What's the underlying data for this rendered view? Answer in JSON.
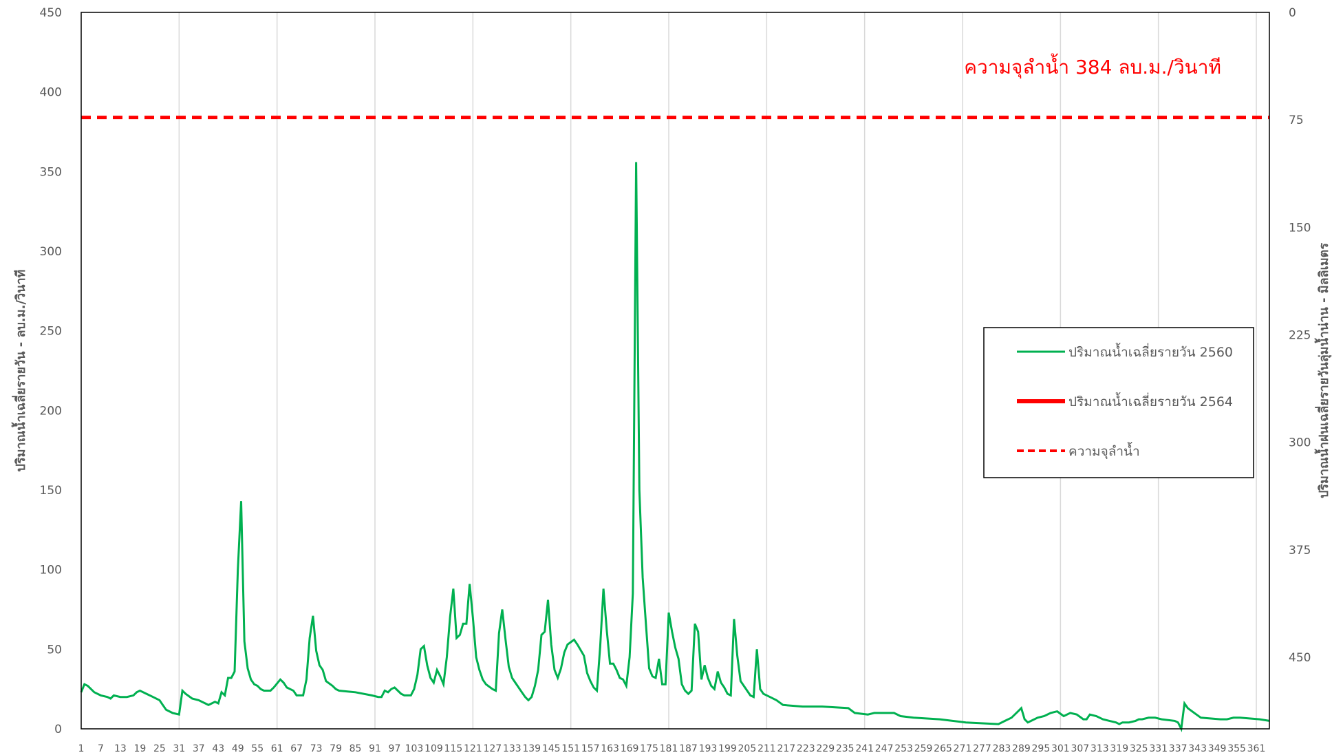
{
  "chart_data": {
    "type": "line",
    "title": "",
    "ylabel_left": "ปริมาณน้ำเฉลี่ยรายวัน - ลบ.ม./วินาที",
    "ylabel_right": "ปริมาณน้ำฝนเฉลี่ยรายวันลุ่มน้ำน่าน - มิลลิเมตร",
    "ylim_left": [
      0,
      450
    ],
    "yticks_left": [
      "0",
      "50",
      "100",
      "150",
      "200",
      "250",
      "300",
      "350",
      "400",
      "450"
    ],
    "ylim_right": [
      0,
      500
    ],
    "right_axis_inverted": true,
    "yticks_right": [
      "0",
      "75",
      "150",
      "225",
      "300",
      "375",
      "450"
    ],
    "xlim": [
      1,
      365
    ],
    "xticks": [
      "1",
      "7",
      "13",
      "19",
      "25",
      "31",
      "37",
      "43",
      "49",
      "55",
      "61",
      "67",
      "73",
      "79",
      "85",
      "91",
      "97",
      "103",
      "109",
      "115",
      "121",
      "127",
      "133",
      "139",
      "145",
      "151",
      "157",
      "163",
      "169",
      "175",
      "181",
      "187",
      "193",
      "199",
      "205",
      "211",
      "217",
      "223",
      "229",
      "235",
      "241",
      "247",
      "253",
      "259",
      "265",
      "271",
      "277",
      "283",
      "289",
      "295",
      "301",
      "307",
      "313",
      "319",
      "325",
      "331",
      "337",
      "343",
      "349",
      "355",
      "361"
    ],
    "grid": "vertical",
    "legend_position": "right",
    "legend": [
      {
        "label": "ปริมาณน้ำเฉลี่ยรายวัน 2560",
        "color": "#00B050",
        "style": "solid-thin"
      },
      {
        "label": "ปริมาณน้ำเฉลี่ยรายวัน 2564",
        "color": "#FF0000",
        "style": "solid-thick"
      },
      {
        "label": "ความจุลำน้ำ",
        "color": "#FF0000",
        "style": "dashed"
      }
    ],
    "capacity": {
      "value": 384,
      "label": "ความจุลำน้ำ 384 ลบ.ม./วินาที",
      "color": "#FF0000"
    },
    "series": [
      {
        "name": "ปริมาณน้ำเฉลี่ยรายวัน 2560",
        "color": "#00B050",
        "points": [
          [
            1,
            23
          ],
          [
            2,
            28
          ],
          [
            3,
            27
          ],
          [
            5,
            23
          ],
          [
            7,
            21
          ],
          [
            9,
            20
          ],
          [
            10,
            19
          ],
          [
            11,
            21
          ],
          [
            13,
            20
          ],
          [
            15,
            20
          ],
          [
            17,
            21
          ],
          [
            18,
            23
          ],
          [
            19,
            24
          ],
          [
            21,
            22
          ],
          [
            23,
            20
          ],
          [
            25,
            18
          ],
          [
            26,
            15
          ],
          [
            27,
            12
          ],
          [
            29,
            10
          ],
          [
            31,
            9
          ],
          [
            32,
            24
          ],
          [
            33,
            22
          ],
          [
            35,
            19
          ],
          [
            37,
            18
          ],
          [
            39,
            16
          ],
          [
            40,
            15
          ],
          [
            41,
            16
          ],
          [
            42,
            17
          ],
          [
            43,
            16
          ],
          [
            44,
            23
          ],
          [
            45,
            21
          ],
          [
            46,
            32
          ],
          [
            47,
            32
          ],
          [
            48,
            36
          ],
          [
            49,
            100
          ],
          [
            50,
            143
          ],
          [
            51,
            55
          ],
          [
            52,
            38
          ],
          [
            53,
            31
          ],
          [
            54,
            28
          ],
          [
            55,
            27
          ],
          [
            56,
            25
          ],
          [
            57,
            24
          ],
          [
            59,
            24
          ],
          [
            60,
            26
          ],
          [
            62,
            31
          ],
          [
            63,
            29
          ],
          [
            64,
            26
          ],
          [
            65,
            25
          ],
          [
            66,
            24
          ],
          [
            67,
            21
          ],
          [
            69,
            21
          ],
          [
            70,
            31
          ],
          [
            71,
            57
          ],
          [
            72,
            71
          ],
          [
            73,
            49
          ],
          [
            74,
            40
          ],
          [
            75,
            37
          ],
          [
            76,
            30
          ],
          [
            78,
            27
          ],
          [
            79,
            25
          ],
          [
            80,
            24
          ],
          [
            85,
            23
          ],
          [
            90,
            21
          ],
          [
            92,
            20
          ],
          [
            93,
            20
          ],
          [
            94,
            24
          ],
          [
            95,
            23
          ],
          [
            96,
            25
          ],
          [
            97,
            26
          ],
          [
            98,
            24
          ],
          [
            99,
            22
          ],
          [
            100,
            21
          ],
          [
            102,
            21
          ],
          [
            103,
            25
          ],
          [
            104,
            34
          ],
          [
            105,
            50
          ],
          [
            106,
            52
          ],
          [
            107,
            40
          ],
          [
            108,
            32
          ],
          [
            109,
            29
          ],
          [
            110,
            37
          ],
          [
            111,
            33
          ],
          [
            112,
            28
          ],
          [
            113,
            45
          ],
          [
            114,
            70
          ],
          [
            115,
            88
          ],
          [
            116,
            57
          ],
          [
            117,
            59
          ],
          [
            118,
            66
          ],
          [
            119,
            66
          ],
          [
            120,
            91
          ],
          [
            121,
            70
          ],
          [
            122,
            45
          ],
          [
            123,
            37
          ],
          [
            124,
            31
          ],
          [
            125,
            28
          ],
          [
            127,
            25
          ],
          [
            128,
            24
          ],
          [
            129,
            60
          ],
          [
            130,
            75
          ],
          [
            131,
            56
          ],
          [
            132,
            39
          ],
          [
            133,
            32
          ],
          [
            134,
            29
          ],
          [
            136,
            23
          ],
          [
            137,
            20
          ],
          [
            138,
            18
          ],
          [
            139,
            20
          ],
          [
            140,
            27
          ],
          [
            141,
            37
          ],
          [
            142,
            59
          ],
          [
            143,
            61
          ],
          [
            144,
            81
          ],
          [
            145,
            53
          ],
          [
            146,
            37
          ],
          [
            147,
            32
          ],
          [
            148,
            38
          ],
          [
            149,
            48
          ],
          [
            150,
            53
          ],
          [
            152,
            56
          ],
          [
            153,
            53
          ],
          [
            155,
            46
          ],
          [
            156,
            35
          ],
          [
            157,
            30
          ],
          [
            158,
            26
          ],
          [
            159,
            24
          ],
          [
            160,
            52
          ],
          [
            161,
            88
          ],
          [
            162,
            62
          ],
          [
            163,
            41
          ],
          [
            164,
            41
          ],
          [
            165,
            37
          ],
          [
            166,
            32
          ],
          [
            167,
            31
          ],
          [
            168,
            27
          ],
          [
            169,
            45
          ],
          [
            170,
            85
          ],
          [
            171,
            356
          ],
          [
            172,
            150
          ],
          [
            173,
            95
          ],
          [
            174,
            66
          ],
          [
            175,
            38
          ],
          [
            176,
            33
          ],
          [
            177,
            32
          ],
          [
            178,
            44
          ],
          [
            179,
            28
          ],
          [
            180,
            28
          ],
          [
            181,
            73
          ],
          [
            182,
            61
          ],
          [
            183,
            51
          ],
          [
            184,
            44
          ],
          [
            185,
            28
          ],
          [
            186,
            24
          ],
          [
            187,
            22
          ],
          [
            188,
            24
          ],
          [
            189,
            66
          ],
          [
            190,
            61
          ],
          [
            191,
            31
          ],
          [
            192,
            40
          ],
          [
            193,
            32
          ],
          [
            194,
            27
          ],
          [
            195,
            25
          ],
          [
            196,
            36
          ],
          [
            197,
            29
          ],
          [
            198,
            26
          ],
          [
            199,
            22
          ],
          [
            200,
            21
          ],
          [
            201,
            69
          ],
          [
            202,
            46
          ],
          [
            203,
            30
          ],
          [
            205,
            24
          ],
          [
            206,
            21
          ],
          [
            207,
            20
          ],
          [
            208,
            50
          ],
          [
            209,
            25
          ],
          [
            210,
            22
          ],
          [
            212,
            20
          ],
          [
            214,
            18
          ],
          [
            216,
            15
          ],
          [
            222,
            14
          ],
          [
            228,
            14
          ],
          [
            236,
            13
          ],
          [
            238,
            10
          ],
          [
            242,
            9
          ],
          [
            244,
            10
          ],
          [
            250,
            10
          ],
          [
            252,
            8
          ],
          [
            256,
            7
          ],
          [
            264,
            6
          ],
          [
            272,
            4
          ],
          [
            282,
            3
          ],
          [
            284,
            5
          ],
          [
            286,
            7
          ],
          [
            288,
            11
          ],
          [
            289,
            13
          ],
          [
            290,
            6
          ],
          [
            291,
            4
          ],
          [
            292,
            5
          ],
          [
            294,
            7
          ],
          [
            296,
            8
          ],
          [
            298,
            10
          ],
          [
            300,
            11
          ],
          [
            302,
            8
          ],
          [
            304,
            10
          ],
          [
            306,
            9
          ],
          [
            308,
            6
          ],
          [
            309,
            6
          ],
          [
            310,
            9
          ],
          [
            312,
            8
          ],
          [
            314,
            6
          ],
          [
            316,
            5
          ],
          [
            318,
            4
          ],
          [
            319,
            3
          ],
          [
            320,
            4
          ],
          [
            322,
            4
          ],
          [
            324,
            5
          ],
          [
            325,
            6
          ],
          [
            326,
            6
          ],
          [
            328,
            7
          ],
          [
            330,
            7
          ],
          [
            332,
            6
          ],
          [
            336,
            5
          ],
          [
            337,
            4
          ],
          [
            338,
            0
          ],
          [
            339,
            16
          ],
          [
            340,
            13
          ],
          [
            342,
            10
          ],
          [
            344,
            7
          ],
          [
            350,
            6
          ],
          [
            352,
            6
          ],
          [
            354,
            7
          ],
          [
            356,
            7
          ],
          [
            362,
            6
          ],
          [
            365,
            5
          ]
        ]
      }
    ]
  }
}
